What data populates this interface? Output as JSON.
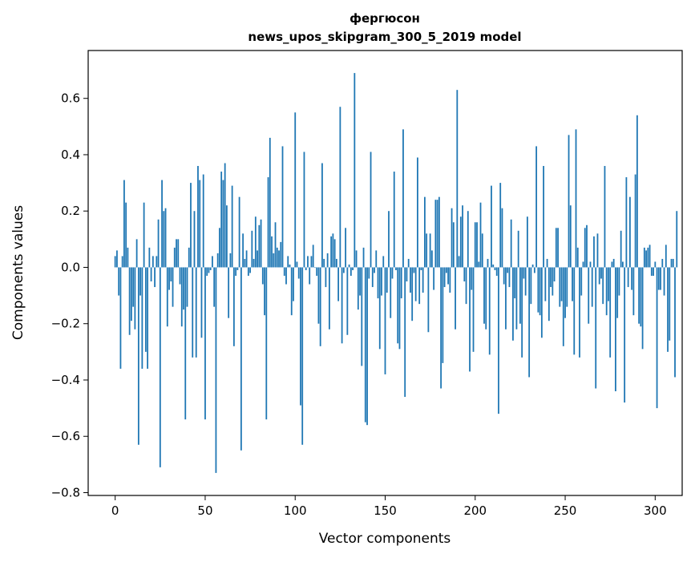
{
  "chart_data": {
    "type": "bar",
    "title_line1": "фергюсон",
    "title_line2": "news_upos_skipgram_300_5_2019 model",
    "xlabel": "Vector components",
    "ylabel": "Components values",
    "xlim": [
      -15,
      315
    ],
    "ylim": [
      -0.81,
      0.77
    ],
    "xticks": [
      0,
      50,
      100,
      150,
      200,
      250,
      300
    ],
    "yticks": [
      -0.8,
      -0.6,
      -0.4,
      -0.2,
      0.0,
      0.2,
      0.4,
      0.6
    ],
    "ytick_labels": [
      "−0.8",
      "−0.6",
      "−0.4",
      "−0.2",
      "0.0",
      "0.2",
      "0.4",
      "0.6"
    ],
    "bar_color": "#1f77b4",
    "grid": false,
    "values": [
      0.04,
      0.06,
      -0.1,
      -0.36,
      0.04,
      0.31,
      0.23,
      0.07,
      -0.24,
      -0.19,
      -0.14,
      -0.22,
      0.1,
      -0.63,
      -0.1,
      -0.36,
      0.23,
      -0.3,
      -0.36,
      0.07,
      -0.05,
      0.04,
      -0.07,
      0.04,
      0.17,
      -0.71,
      0.31,
      0.2,
      0.21,
      -0.21,
      -0.08,
      -0.05,
      -0.14,
      0.07,
      0.1,
      0.1,
      -0.06,
      -0.21,
      -0.15,
      -0.54,
      -0.14,
      0.07,
      0.3,
      -0.32,
      0.2,
      -0.32,
      0.36,
      0.31,
      -0.25,
      0.33,
      -0.54,
      -0.03,
      -0.02,
      -0.01,
      0.04,
      -0.14,
      -0.73,
      0.05,
      0.14,
      0.34,
      0.31,
      0.37,
      0.22,
      -0.18,
      0.05,
      0.29,
      -0.28,
      -0.03,
      -0.01,
      0.25,
      -0.65,
      0.12,
      0.03,
      0.06,
      -0.03,
      -0.02,
      0.13,
      0.03,
      0.18,
      0.06,
      0.15,
      0.17,
      -0.06,
      -0.17,
      -0.54,
      0.32,
      0.46,
      0.11,
      0.05,
      0.16,
      0.07,
      0.06,
      0.09,
      0.43,
      -0.03,
      -0.06,
      0.04,
      0.01,
      -0.17,
      -0.12,
      0.55,
      0.02,
      -0.04,
      -0.49,
      -0.63,
      0.41,
      -0.01,
      0.04,
      -0.06,
      0.04,
      0.08,
      0.0,
      -0.03,
      -0.2,
      -0.28,
      0.37,
      0.03,
      -0.07,
      0.05,
      -0.22,
      0.11,
      0.12,
      0.1,
      0.03,
      -0.12,
      0.57,
      -0.27,
      -0.02,
      0.14,
      -0.24,
      0.01,
      -0.03,
      -0.01,
      0.69,
      0.06,
      -0.15,
      -0.1,
      -0.35,
      0.07,
      -0.55,
      -0.56,
      -0.04,
      0.41,
      -0.07,
      -0.02,
      0.06,
      -0.11,
      -0.29,
      -0.1,
      0.04,
      -0.38,
      -0.09,
      0.2,
      -0.18,
      -0.04,
      0.34,
      -0.01,
      -0.27,
      -0.29,
      -0.11,
      0.49,
      -0.46,
      -0.05,
      0.03,
      -0.09,
      -0.19,
      -0.02,
      -0.12,
      0.39,
      -0.13,
      -0.01,
      -0.09,
      0.25,
      0.12,
      -0.23,
      0.12,
      0.06,
      -0.08,
      0.24,
      0.24,
      0.25,
      -0.43,
      -0.34,
      -0.07,
      -0.02,
      -0.06,
      -0.09,
      0.21,
      0.16,
      -0.22,
      0.63,
      0.04,
      0.18,
      0.22,
      -0.05,
      -0.13,
      0.2,
      -0.37,
      -0.08,
      -0.3,
      0.16,
      0.16,
      0.02,
      0.23,
      0.12,
      -0.2,
      -0.22,
      0.03,
      -0.31,
      0.29,
      0.01,
      -0.01,
      -0.03,
      -0.52,
      0.3,
      0.21,
      -0.06,
      -0.22,
      -0.02,
      -0.07,
      0.17,
      -0.26,
      -0.11,
      -0.22,
      0.13,
      -0.2,
      -0.32,
      -0.04,
      -0.1,
      0.18,
      -0.39,
      -0.13,
      0.01,
      -0.02,
      0.43,
      -0.16,
      -0.17,
      -0.25,
      0.36,
      -0.12,
      0.03,
      -0.19,
      -0.07,
      -0.1,
      -0.05,
      0.14,
      0.14,
      -0.14,
      -0.12,
      -0.28,
      -0.18,
      -0.14,
      0.47,
      0.22,
      -0.12,
      -0.31,
      0.49,
      0.07,
      -0.32,
      -0.1,
      0.02,
      0.14,
      0.15,
      -0.2,
      0.02,
      -0.14,
      0.11,
      -0.43,
      0.12,
      -0.06,
      -0.04,
      -0.13,
      0.36,
      -0.17,
      -0.12,
      -0.32,
      0.02,
      0.03,
      -0.44,
      -0.18,
      -0.1,
      0.13,
      0.02,
      -0.48,
      0.32,
      -0.07,
      0.25,
      -0.08,
      -0.17,
      0.33,
      0.54,
      -0.2,
      -0.21,
      -0.29,
      0.07,
      0.06,
      0.07,
      0.08,
      -0.03,
      -0.03,
      0.02,
      -0.5,
      -0.08,
      -0.08,
      0.03,
      -0.1,
      0.08,
      -0.3,
      -0.26,
      0.03,
      0.03,
      -0.39,
      0.2
    ]
  }
}
